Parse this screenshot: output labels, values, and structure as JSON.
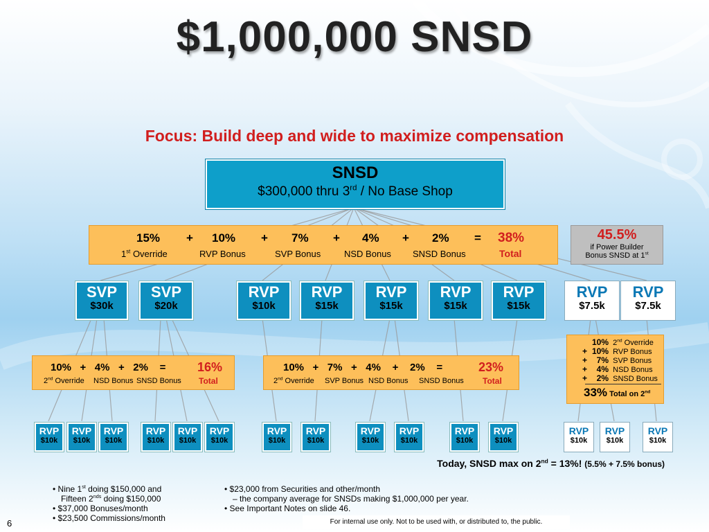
{
  "title": "$1,000,000 SNSD",
  "subtitle": "Focus: Build deep and wide to maximize compensation",
  "top_box": {
    "heading": "SNSD",
    "line_prefix": "$300,000 thru 3",
    "line_sup": "rd",
    "line_suffix": " / No Base Shop"
  },
  "main_bonus": {
    "values": [
      "15%",
      "10%",
      "7%",
      "4%",
      "2%"
    ],
    "operators": [
      "+",
      "+",
      "+",
      "+",
      "="
    ],
    "total": "38%",
    "labels": [
      "Override",
      "RVP Bonus",
      "SVP Bonus",
      "NSD Bonus",
      "SNSD Bonus"
    ],
    "first_label_prefix": "1",
    "first_label_sup": "st",
    "total_label": "Total"
  },
  "power_builder": {
    "percent": "45.5%",
    "line1": "if Power Builder",
    "line2_prefix": "Bonus SNSD at 1",
    "line2_sup": "st"
  },
  "level2_boxes": [
    {
      "name": "SVP",
      "value": "$30k"
    },
    {
      "name": "SVP",
      "value": "$20k"
    },
    {
      "name": "RVP",
      "value": "$10k"
    },
    {
      "name": "RVP",
      "value": "$15k"
    },
    {
      "name": "RVP",
      "value": "$15k"
    },
    {
      "name": "RVP",
      "value": "$15k"
    },
    {
      "name": "RVP",
      "value": "$15k"
    },
    {
      "name": "RVP",
      "value": "$7.5k"
    },
    {
      "name": "RVP",
      "value": "$7.5k"
    }
  ],
  "left_bonus": {
    "expression": "10%   +   4%   +   2%    =",
    "total": "16%",
    "override_prefix": "2",
    "override_sup": "nd",
    "override_label": " Override",
    "labels": [
      "NSD Bonus",
      "SNSD Bonus"
    ],
    "total_label": "Total"
  },
  "center_bonus": {
    "expression": "10%   +   7%   +   4%    +    2%    =",
    "total": "23%",
    "override_prefix": "2",
    "override_sup": "nd",
    "override_label": " Override",
    "labels": [
      "SVP Bonus",
      "NSD Bonus",
      "SNSD Bonus"
    ],
    "total_label": "Total"
  },
  "right_bonus": {
    "lines": [
      {
        "op": "",
        "pct": "10%",
        "label": "Override",
        "label_prefix": "2",
        "label_sup": "nd"
      },
      {
        "op": "+",
        "pct": "10%",
        "label": "RVP Bonus"
      },
      {
        "op": "+",
        "pct": "7%",
        "label": "SVP Bonus"
      },
      {
        "op": "+",
        "pct": "4%",
        "label": "NSD Bonus"
      },
      {
        "op": "+",
        "pct": "2%",
        "label": "SNSD Bonus"
      }
    ],
    "total": "33%",
    "total_label_prefix": "Total on 2",
    "total_label_sup": "nd"
  },
  "level3_boxes": [
    {
      "name": "RVP",
      "value": "$10k"
    },
    {
      "name": "RVP",
      "value": "$10k"
    },
    {
      "name": "RVP",
      "value": "$10k"
    },
    {
      "name": "RVP",
      "value": "$10k"
    },
    {
      "name": "RVP",
      "value": "$10k"
    },
    {
      "name": "RVP",
      "value": "$10k"
    },
    {
      "name": "RVP",
      "value": "$10k"
    },
    {
      "name": "RVP",
      "value": "$10k"
    },
    {
      "name": "RVP",
      "value": "$10k"
    },
    {
      "name": "RVP",
      "value": "$10k"
    },
    {
      "name": "RVP",
      "value": "$10k"
    },
    {
      "name": "RVP",
      "value": "$10k"
    },
    {
      "name": "RVP",
      "value": "$10k"
    },
    {
      "name": "RVP",
      "value": "$10k"
    },
    {
      "name": "RVP",
      "value": "$10k"
    }
  ],
  "today_note": {
    "prefix": "Today, SNSD max on 2",
    "sup": "nd",
    "suffix": " = 13%! ",
    "small": "(5.5% + 7.5% bonus)"
  },
  "bullets_left": {
    "b1_prefix": "Nine 1",
    "b1_sup": "st",
    "b1_suffix": " doing $150,000 and",
    "b1_line2_prefix": "Fifteen 2",
    "b1_line2_sup": "nds",
    "b1_line2_suffix": " doing $150,000",
    "b2": "$37,000 Bonuses/month",
    "b3": "$23,500 Commissions/month"
  },
  "bullets_right": {
    "b1": "$23,000 from Securities and other/month",
    "b1_line2": "– the company average for SNSDs making $1,000,000 per year.",
    "b2": "See Important Notes on slide 46."
  },
  "footer": "For internal use only. Not to be used with, or distributed to, the public.",
  "page_number": "6",
  "colors": {
    "accent_blue": "#0e8fbf",
    "orange": "#fdbf5a",
    "red": "#d11e1e",
    "rvp_text_blue": "#0b78b5"
  }
}
